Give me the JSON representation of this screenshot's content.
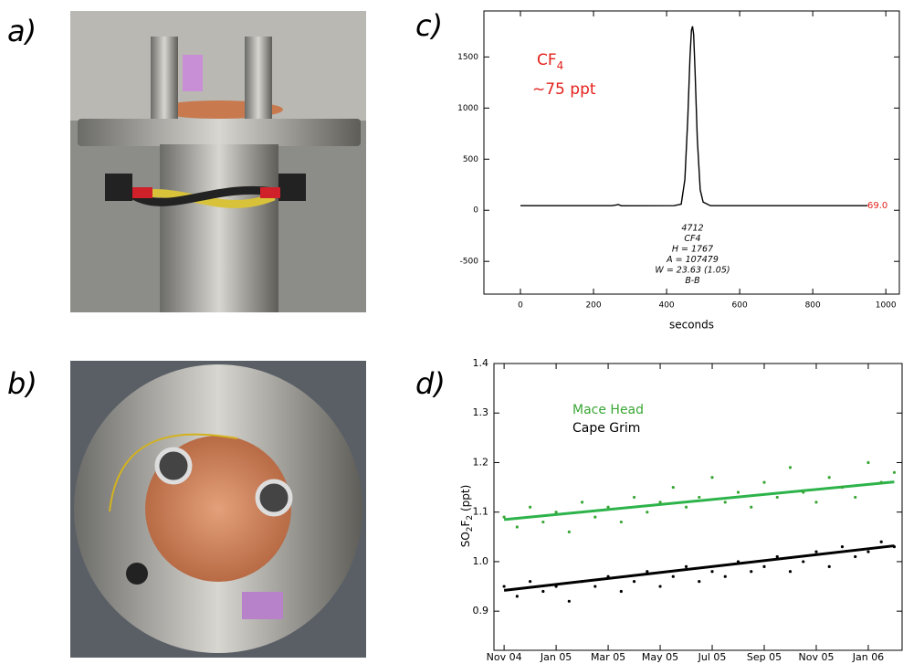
{
  "panel_labels": [
    "a)",
    "b)",
    "c)",
    "d)"
  ],
  "chart_data": [
    {
      "type": "line",
      "series": [
        {
          "color": "#000000",
          "x": [
            0,
            250,
            262,
            268,
            276,
            420,
            440,
            450,
            458,
            464,
            468,
            471,
            474,
            478,
            484,
            492,
            500,
            520,
            950
          ],
          "values": [
            45,
            45,
            52,
            56,
            44,
            45,
            60,
            300,
            900,
            1500,
            1760,
            1800,
            1720,
            1350,
            700,
            200,
            80,
            45,
            45
          ]
        }
      ],
      "xlim": [
        -100,
        1037
      ],
      "ylim": [
        -820,
        1950
      ],
      "xticks": [
        0,
        200,
        400,
        600,
        800,
        1000
      ],
      "yticks": [
        -500,
        0,
        500,
        1000,
        1500
      ],
      "xlabel": "seconds",
      "annotation": {
        "formula": [
          "CF",
          "4"
        ],
        "text": "~75 ppt",
        "color": "#e3211c"
      },
      "peak_labels": [
        "4712",
        "CF4",
        "H = 1767",
        "A = 107479",
        "W = 23.63 (1.05)",
        "B-B"
      ],
      "baseline_label": "69.0"
    },
    {
      "type": "scatter",
      "x": [
        0,
        0.5,
        1,
        1.5,
        2,
        2.5,
        3,
        3.5,
        4,
        4.5,
        5,
        5.5,
        6,
        6.5,
        7,
        7.5,
        8,
        8.5,
        9,
        9.5,
        10,
        10.5,
        11,
        11.5,
        12,
        12.5,
        13,
        13.5,
        14,
        14.5,
        15
      ],
      "series": [
        {
          "name": "Mace Head",
          "color": "#3aa635",
          "values": [
            1.09,
            1.07,
            1.11,
            1.08,
            1.1,
            1.06,
            1.12,
            1.09,
            1.11,
            1.08,
            1.13,
            1.1,
            1.12,
            1.15,
            1.11,
            1.13,
            1.17,
            1.12,
            1.14,
            1.11,
            1.16,
            1.13,
            1.19,
            1.14,
            1.12,
            1.17,
            1.15,
            1.13,
            1.2,
            1.16,
            1.18
          ]
        },
        {
          "name": "Cape Grim",
          "color": "#000000",
          "values": [
            0.95,
            0.93,
            0.96,
            0.94,
            0.95,
            0.92,
            0.96,
            0.95,
            0.97,
            0.94,
            0.96,
            0.98,
            0.95,
            0.97,
            0.99,
            0.96,
            0.98,
            0.97,
            1.0,
            0.98,
            0.99,
            1.01,
            0.98,
            1.0,
            1.02,
            0.99,
            1.03,
            1.01,
            1.02,
            1.04,
            1.03
          ]
        }
      ],
      "trend_lines": [
        {
          "color": "#2db34a",
          "x": [
            0,
            15
          ],
          "values": [
            1.085,
            1.161
          ]
        },
        {
          "color": "#000000",
          "x": [
            0,
            15
          ],
          "values": [
            0.942,
            1.032
          ]
        }
      ],
      "xlim": [
        -0.39,
        15.3
      ],
      "ylim": [
        0.821,
        1.4
      ],
      "xticks": [
        {
          "value": 0,
          "label": "Nov 04"
        },
        {
          "value": 2,
          "label": "Jan 05"
        },
        {
          "value": 4,
          "label": "Mar 05"
        },
        {
          "value": 6,
          "label": "May 05"
        },
        {
          "value": 8,
          "label": "Jul 05"
        },
        {
          "value": 10,
          "label": "Sep 05"
        },
        {
          "value": 12,
          "label": "Nov 05"
        },
        {
          "value": 14,
          "label": "Jan 06"
        }
      ],
      "yticks": [
        0.9,
        {
          "value": 1,
          "label": "1.0"
        },
        1.1,
        1.2,
        1.3,
        1.4
      ],
      "ylabel": [
        "SO",
        "2",
        "F",
        "2",
        " (ppt)"
      ]
    }
  ]
}
